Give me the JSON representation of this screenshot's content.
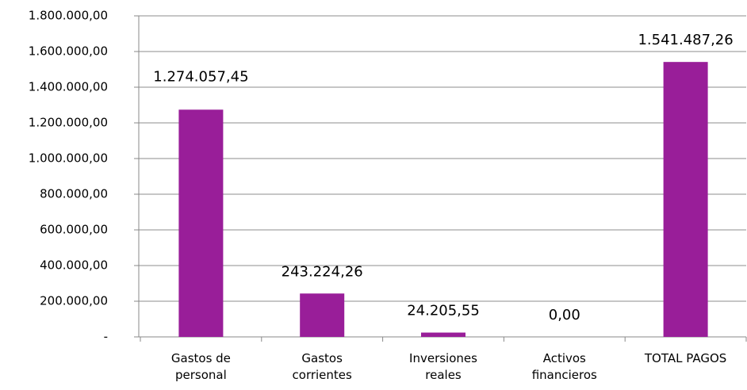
{
  "chart_data": {
    "type": "bar",
    "categories": [
      "Gastos de\npersonal",
      "Gastos\ncorrientes",
      "Inversiones\nreales",
      "Activos\nfinancieros",
      "TOTAL PAGOS"
    ],
    "values": [
      1274057.45,
      243224.26,
      24205.55,
      0,
      1541487.26
    ],
    "value_labels": [
      "1.274.057,45",
      "243.224,26",
      "24.205,55",
      "0,00",
      "1.541.487,26"
    ],
    "color": "#991e99",
    "ylim": [
      0,
      1800000
    ],
    "yticks": [
      {
        "value": 0,
        "label": "-"
      },
      {
        "value": 200000,
        "label": "200.000,00"
      },
      {
        "value": 400000,
        "label": "400.000,00"
      },
      {
        "value": 600000,
        "label": "600.000,00"
      },
      {
        "value": 800000,
        "label": "800.000,00"
      },
      {
        "value": 1000000,
        "label": "1.000.000,00"
      },
      {
        "value": 1200000,
        "label": "1.200.000,00"
      },
      {
        "value": 1400000,
        "label": "1.400.000,00"
      },
      {
        "value": 1600000,
        "label": "1.600.000,00"
      },
      {
        "value": 1800000,
        "label": "1.800.000,00"
      }
    ],
    "grid": true
  }
}
